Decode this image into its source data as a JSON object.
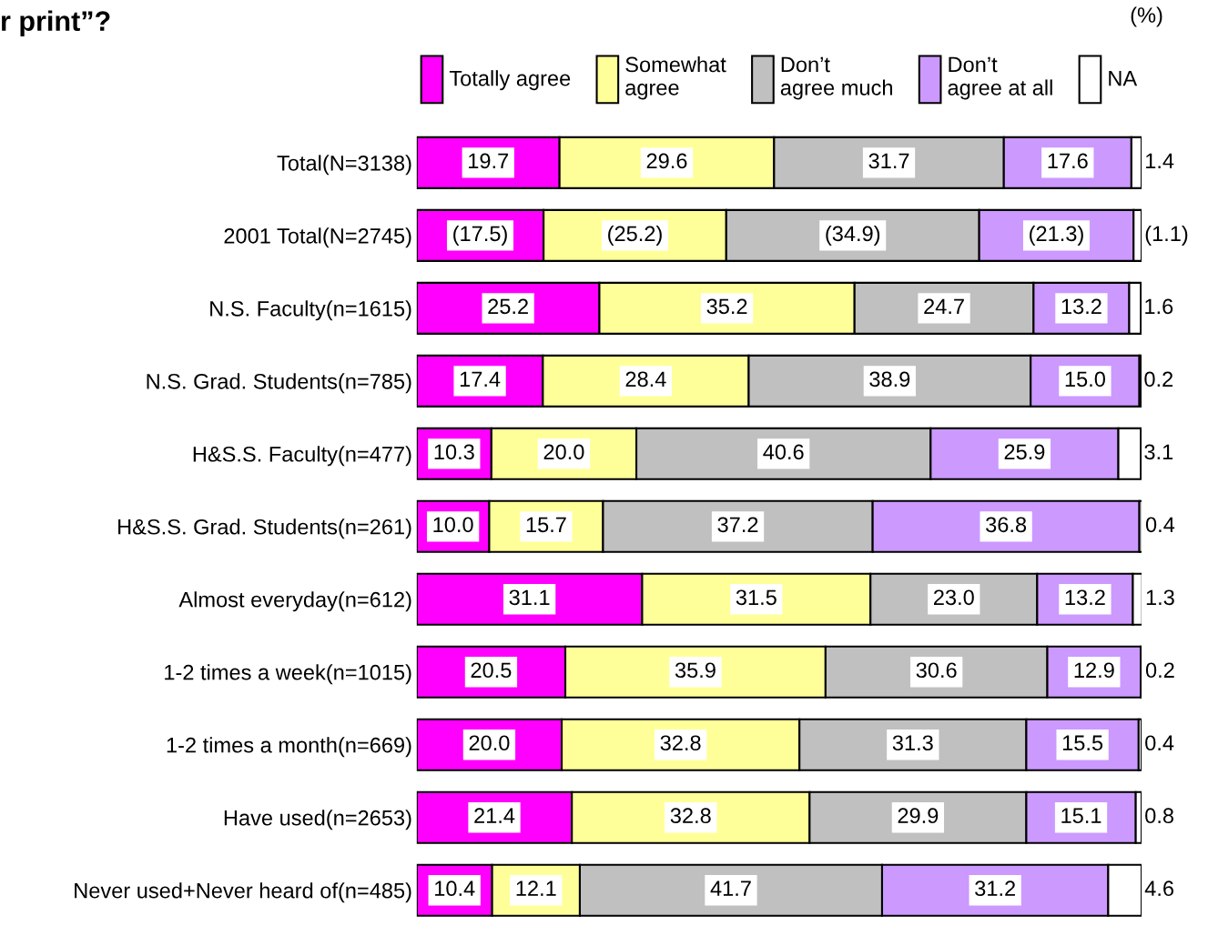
{
  "chart_data": {
    "type": "bar",
    "orientation": "horizontal",
    "stacked": true,
    "title": "r print”?",
    "annotations": [
      "(%)"
    ],
    "legend": "top",
    "tick_labels": "y",
    "xlim": [
      0,
      100
    ],
    "categories": [
      "Total(N=3138)",
      "2001 Total(N=2745)",
      "N.S. Faculty(n=1615)",
      "N.S. Grad. Students(n=785)",
      "H&S.S. Faculty(n=477)",
      "H&S.S. Grad. Students(n=261)",
      "Almost everyday(n=612)",
      "1-2 times a week(n=1015)",
      "1-2 times a month(n=669)",
      "Have used(n=2653)",
      "Never used+Never heard of(n=485)"
    ],
    "series": [
      {
        "name": "Totally agree",
        "color": "#ff00ff",
        "values": [
          19.7,
          17.5,
          25.2,
          17.4,
          10.3,
          10.0,
          31.1,
          20.5,
          20.0,
          21.4,
          10.4
        ],
        "value_labels": [
          "19.7",
          "(17.5)",
          "25.2",
          "17.4",
          "10.3",
          "10.0",
          "31.1",
          "20.5",
          "20.0",
          "21.4",
          "10.4"
        ]
      },
      {
        "name": "Somewhat agree",
        "color": "#ffff99",
        "values": [
          29.6,
          25.2,
          35.2,
          28.4,
          20.0,
          15.7,
          31.5,
          35.9,
          32.8,
          32.8,
          12.1
        ],
        "value_labels": [
          "29.6",
          "(25.2)",
          "35.2",
          "28.4",
          "20.0",
          "15.7",
          "31.5",
          "35.9",
          "32.8",
          "32.8",
          "12.1"
        ]
      },
      {
        "name": "Don’t agree much",
        "color": "#c0c0c0",
        "values": [
          31.7,
          34.9,
          24.7,
          38.9,
          40.6,
          37.2,
          23.0,
          30.6,
          31.3,
          29.9,
          41.7
        ],
        "value_labels": [
          "31.7",
          "(34.9)",
          "24.7",
          "38.9",
          "40.6",
          "37.2",
          "23.0",
          "30.6",
          "31.3",
          "29.9",
          "41.7"
        ]
      },
      {
        "name": "Don’t agree at all",
        "color": "#cc99ff",
        "values": [
          17.6,
          21.3,
          13.2,
          15.0,
          25.9,
          36.8,
          13.2,
          12.9,
          15.5,
          15.1,
          31.2
        ],
        "value_labels": [
          "17.6",
          "(21.3)",
          "13.2",
          "15.0",
          "25.9",
          "36.8",
          "13.2",
          "12.9",
          "15.5",
          "15.1",
          "31.2"
        ]
      },
      {
        "name": "NA",
        "color": "#ffffff",
        "values": [
          1.4,
          1.1,
          1.6,
          0.2,
          3.1,
          0.4,
          1.3,
          0.2,
          0.4,
          0.8,
          4.6
        ],
        "value_labels": [
          "1.4",
          "(1.1)",
          "1.6",
          "0.2",
          "3.1",
          "0.4",
          "1.3",
          "0.2",
          "0.4",
          "0.8",
          "4.6"
        ]
      }
    ]
  }
}
